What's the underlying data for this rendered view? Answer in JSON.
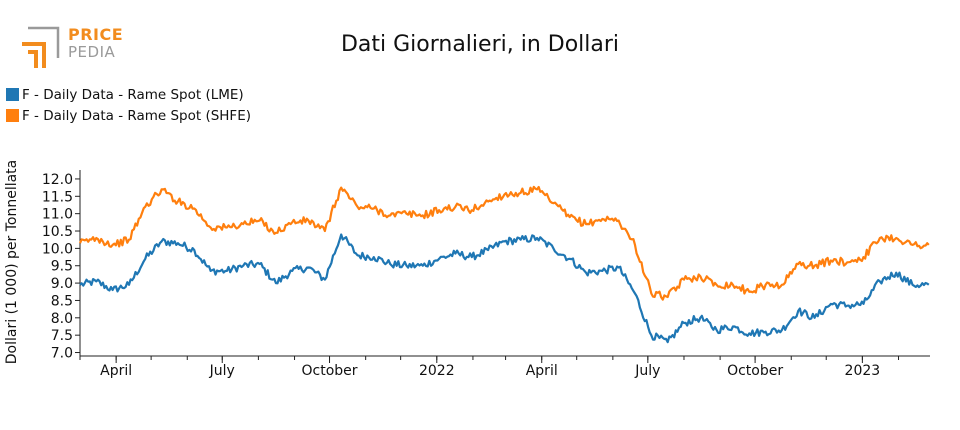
{
  "logo": {
    "line1": "PRICE",
    "line2": "PEDIA",
    "color_primary": "#f28c1e",
    "color_secondary": "#9a9a9a"
  },
  "chart_data": {
    "type": "line",
    "title": "Dati Giornalieri, in Dollari",
    "ylabel": "Dollari (1 000) per Tonnellata",
    "xlabel": "",
    "ylim": [
      6.9,
      12.2
    ],
    "yticks": [
      7.0,
      7.5,
      8.0,
      8.5,
      9.0,
      9.5,
      10.0,
      10.5,
      11.0,
      11.5,
      12.0
    ],
    "ytick_labels": [
      "7.0",
      "7.5",
      "8.0",
      "8.5",
      "9.0",
      "9.5",
      "10.0",
      "10.5",
      "11.0",
      "11.5",
      "12.0"
    ],
    "xlim": [
      "2021-03-01",
      "2023-02-28"
    ],
    "xticks": [
      "2021-04-01",
      "2021-07-01",
      "2021-10-01",
      "2022-01-01",
      "2022-04-01",
      "2022-07-01",
      "2022-10-01",
      "2023-01-01"
    ],
    "xtick_labels": [
      "April",
      "July",
      "October",
      "2022",
      "April",
      "July",
      "October",
      "2023"
    ],
    "grid": false,
    "legend_position": "top-left",
    "series": [
      {
        "name": "F - Daily Data - Rame Spot (LME)",
        "color": "#1f77b4",
        "x": [
          "2021-03-01",
          "2021-03-15",
          "2021-03-29",
          "2021-04-12",
          "2021-04-26",
          "2021-05-10",
          "2021-05-24",
          "2021-06-07",
          "2021-06-21",
          "2021-07-05",
          "2021-07-19",
          "2021-08-02",
          "2021-08-16",
          "2021-08-30",
          "2021-09-13",
          "2021-09-27",
          "2021-10-11",
          "2021-10-25",
          "2021-11-08",
          "2021-11-22",
          "2021-12-06",
          "2021-12-20",
          "2022-01-03",
          "2022-01-17",
          "2022-01-31",
          "2022-02-14",
          "2022-02-28",
          "2022-03-14",
          "2022-03-28",
          "2022-04-11",
          "2022-04-25",
          "2022-05-09",
          "2022-05-23",
          "2022-06-06",
          "2022-06-20",
          "2022-07-04",
          "2022-07-18",
          "2022-08-01",
          "2022-08-15",
          "2022-08-29",
          "2022-09-12",
          "2022-09-26",
          "2022-10-10",
          "2022-10-24",
          "2022-11-07",
          "2022-11-21",
          "2022-12-05",
          "2022-12-19",
          "2023-01-02",
          "2023-01-16",
          "2023-01-30",
          "2023-02-13",
          "2023-02-27"
        ],
        "values": [
          8.95,
          9.05,
          8.8,
          8.95,
          9.7,
          10.2,
          10.15,
          9.95,
          9.35,
          9.35,
          9.5,
          9.55,
          9.0,
          9.35,
          9.45,
          9.1,
          10.4,
          9.8,
          9.75,
          9.55,
          9.5,
          9.5,
          9.7,
          9.85,
          9.75,
          9.95,
          10.2,
          10.25,
          10.3,
          10.0,
          9.7,
          9.3,
          9.35,
          9.45,
          8.7,
          7.5,
          7.3,
          7.85,
          8.0,
          7.65,
          7.75,
          7.55,
          7.6,
          7.65,
          8.2,
          8.0,
          8.4,
          8.35,
          8.4,
          9.05,
          9.3,
          8.95,
          8.95
        ]
      },
      {
        "name": "F - Daily Data - Rame Spot (SHFE)",
        "color": "#ff7f0e",
        "x": [
          "2021-03-01",
          "2021-03-15",
          "2021-03-29",
          "2021-04-12",
          "2021-04-26",
          "2021-05-10",
          "2021-05-24",
          "2021-06-07",
          "2021-06-21",
          "2021-07-05",
          "2021-07-19",
          "2021-08-02",
          "2021-08-16",
          "2021-08-30",
          "2021-09-13",
          "2021-09-27",
          "2021-10-11",
          "2021-10-25",
          "2021-11-08",
          "2021-11-22",
          "2021-12-06",
          "2021-12-20",
          "2022-01-03",
          "2022-01-17",
          "2022-01-31",
          "2022-02-14",
          "2022-02-28",
          "2022-03-14",
          "2022-03-28",
          "2022-04-11",
          "2022-04-25",
          "2022-05-09",
          "2022-05-23",
          "2022-06-06",
          "2022-06-20",
          "2022-07-04",
          "2022-07-18",
          "2022-08-01",
          "2022-08-15",
          "2022-08-29",
          "2022-09-12",
          "2022-09-26",
          "2022-10-10",
          "2022-10-24",
          "2022-11-07",
          "2022-11-21",
          "2022-12-05",
          "2022-12-19",
          "2023-01-02",
          "2023-01-16",
          "2023-01-30",
          "2023-02-13",
          "2023-02-27"
        ],
        "values": [
          10.15,
          10.3,
          10.1,
          10.25,
          11.2,
          11.7,
          11.35,
          11.15,
          10.6,
          10.6,
          10.7,
          10.8,
          10.45,
          10.75,
          10.8,
          10.5,
          11.75,
          11.2,
          11.15,
          10.95,
          11.0,
          10.95,
          11.1,
          11.2,
          11.1,
          11.35,
          11.55,
          11.6,
          11.7,
          11.3,
          10.9,
          10.7,
          10.85,
          10.8,
          10.1,
          8.7,
          8.6,
          9.1,
          9.2,
          8.95,
          8.95,
          8.75,
          8.95,
          8.95,
          9.55,
          9.5,
          9.65,
          9.6,
          9.75,
          10.3,
          10.3,
          10.1,
          10.1
        ]
      }
    ]
  }
}
